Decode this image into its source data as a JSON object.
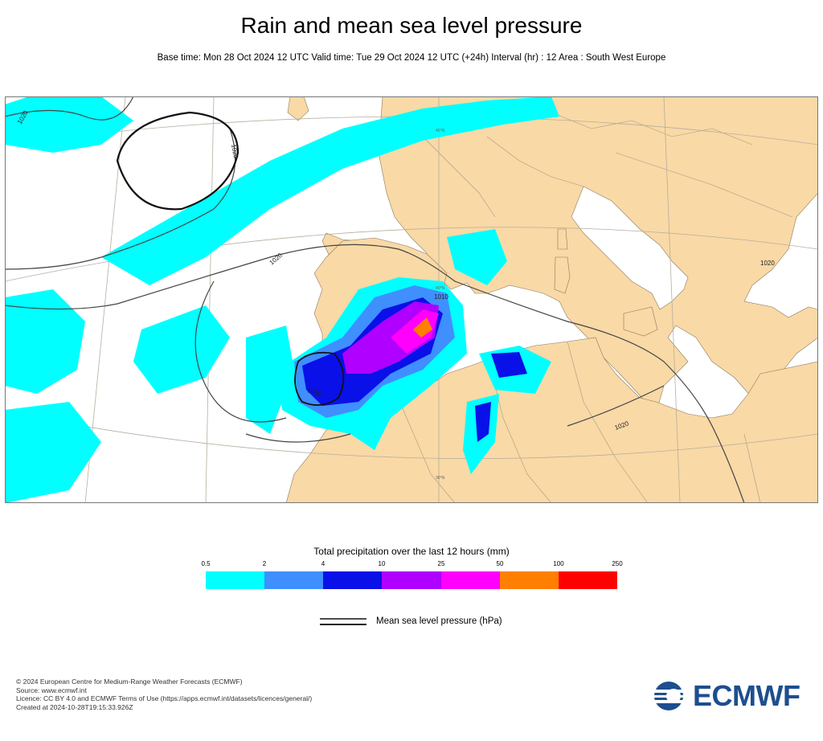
{
  "header": {
    "title": "Rain and mean sea level pressure",
    "subtitle": "Base time: Mon 28 Oct 2024 12 UTC Valid time: Tue 29 Oct 2024 12 UTC (+24h) Interval (hr) : 12 Area : South West Europe"
  },
  "map": {
    "isobar_labels": [
      "1020",
      "1020",
      "1020",
      "1010",
      "1020",
      "1010",
      "1020"
    ],
    "lat_labels": [
      "45°N",
      "40°N",
      "30°N"
    ],
    "colors": {
      "land": "#f9d9a6",
      "sea": "#ffffff",
      "grid": "#b7ad9e",
      "border": "#a49a84"
    }
  },
  "legend": {
    "title": "Total precipitation over the last 12 hours (mm)",
    "ticks": [
      "0.5",
      "2",
      "4",
      "10",
      "25",
      "50",
      "100",
      "250"
    ],
    "colors": [
      "#00ffff",
      "#3f8fff",
      "#0a10e8",
      "#b000ff",
      "#ff00ff",
      "#ff8000",
      "#ff0000"
    ],
    "pressure_label": "Mean sea level pressure (hPa)"
  },
  "footer": {
    "lines": [
      "© 2024 European Centre for Medium-Range Weather Forecasts (ECMWF)",
      "Source: www.ecmwf.int",
      "Licence: CC BY 4.0 and ECMWF Terms of Use (https://apps.ecmwf.int/datasets/licences/general/)",
      "Created at 2024-10-28T19:15:33.926Z"
    ],
    "logo_text": "ECMWF"
  }
}
